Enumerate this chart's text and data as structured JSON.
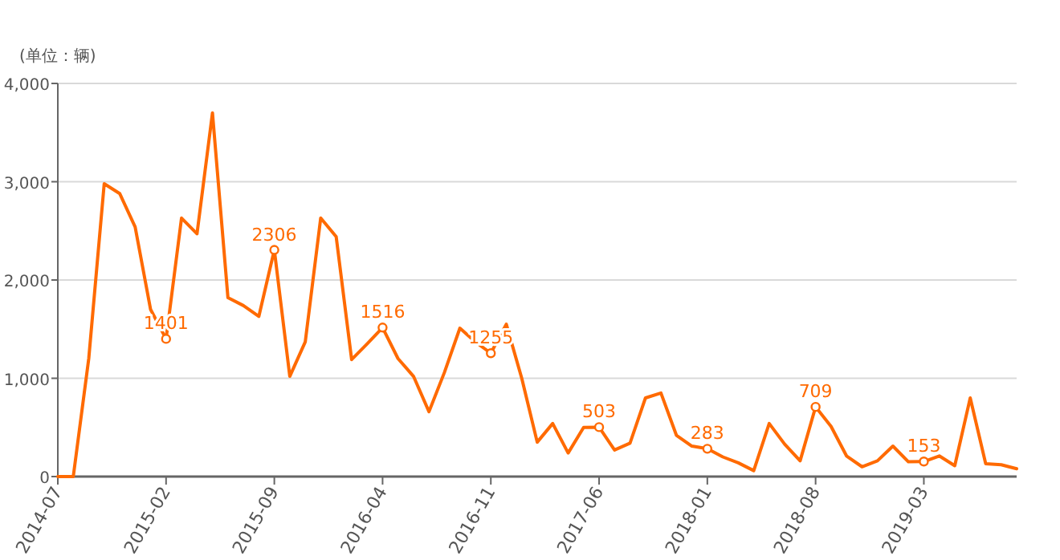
{
  "chart_data": {
    "type": "line",
    "ylabel": "(单位：辆)",
    "x": [
      "2014-07",
      "2014-08",
      "2014-09",
      "2014-10",
      "2014-11",
      "2014-12",
      "2015-01",
      "2015-02",
      "2015-03",
      "2015-04",
      "2015-05",
      "2015-06",
      "2015-07",
      "2015-08",
      "2015-09",
      "2015-10",
      "2015-11",
      "2015-12",
      "2016-01",
      "2016-02",
      "2016-03",
      "2016-04",
      "2016-05",
      "2016-06",
      "2016-07",
      "2016-08",
      "2016-09",
      "2016-10",
      "2016-11",
      "2016-12",
      "2017-01",
      "2017-02",
      "2017-03",
      "2017-04",
      "2017-05",
      "2017-06",
      "2017-07",
      "2017-08",
      "2017-09",
      "2017-10",
      "2017-11",
      "2017-12",
      "2018-01",
      "2018-02",
      "2018-03",
      "2018-04",
      "2018-05",
      "2018-06",
      "2018-07",
      "2018-08",
      "2018-09",
      "2018-10",
      "2018-11",
      "2018-12",
      "2019-01",
      "2019-02",
      "2019-03",
      "2019-04",
      "2019-05",
      "2019-06",
      "2019-07",
      "2019-08",
      "2019-09"
    ],
    "series": [
      {
        "color": "#ff6a00",
        "values": [
          0,
          0,
          1200,
          2980,
          2880,
          2540,
          1700,
          1401,
          2630,
          2470,
          3700,
          1820,
          1740,
          1630,
          2306,
          1020,
          1370,
          2630,
          2440,
          1190,
          1350,
          1516,
          1200,
          1020,
          660,
          1060,
          1510,
          1370,
          1255,
          1550,
          1000,
          350,
          540,
          240,
          500,
          503,
          270,
          340,
          800,
          850,
          420,
          310,
          283,
          200,
          140,
          60,
          540,
          330,
          160,
          709,
          510,
          210,
          100,
          160,
          310,
          150,
          153,
          210,
          110,
          800,
          130,
          120,
          80
        ],
        "value_labels": [
          null,
          null,
          null,
          null,
          null,
          null,
          null,
          "1401",
          null,
          null,
          null,
          null,
          null,
          null,
          "2306",
          null,
          null,
          null,
          null,
          null,
          null,
          "1516",
          null,
          null,
          null,
          null,
          null,
          null,
          "1255",
          null,
          null,
          null,
          null,
          null,
          null,
          "503",
          null,
          null,
          null,
          null,
          null,
          null,
          "283",
          null,
          null,
          null,
          null,
          null,
          null,
          "709",
          null,
          null,
          null,
          null,
          null,
          null,
          "153",
          null,
          null,
          null,
          null,
          null,
          null
        ]
      }
    ],
    "xlim": [
      "2014-07",
      "2019-09"
    ],
    "xticks": [
      "2014-07",
      "2015-02",
      "2015-09",
      "2016-04",
      "2016-11",
      "2017-06",
      "2018-01",
      "2018-08",
      "2019-03"
    ],
    "ylim": [
      0,
      4000
    ],
    "yticks": [
      {
        "value": 0,
        "label": "0"
      },
      {
        "value": 1000,
        "label": "1,000"
      },
      {
        "value": 2000,
        "label": "2,000"
      },
      {
        "value": 3000,
        "label": "3,000"
      },
      {
        "value": 4000,
        "label": "4,000"
      }
    ],
    "grid": "y"
  }
}
